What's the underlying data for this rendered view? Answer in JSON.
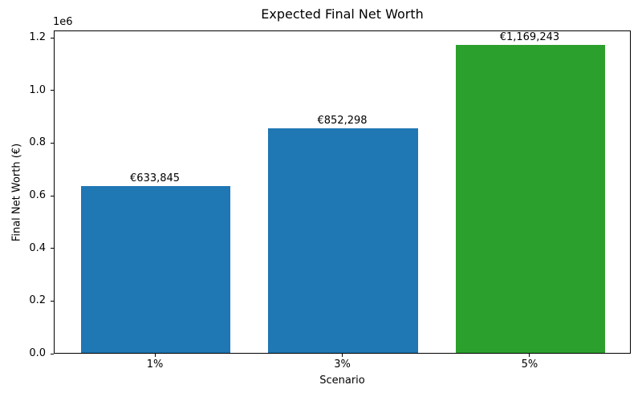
{
  "chart_data": {
    "type": "bar",
    "title": "Expected Final Net Worth",
    "xlabel": "Scenario",
    "ylabel": "Final Net Worth (€)",
    "categories": [
      "1%",
      "3%",
      "5%"
    ],
    "values": [
      633845,
      852298,
      1169243
    ],
    "value_labels": [
      "€633,845",
      "€852,298",
      "€1,169,243"
    ],
    "bar_colors": [
      "#1f77b4",
      "#1f77b4",
      "#2ca02c"
    ],
    "offset_text": "1e6",
    "y_tick_values": [
      0,
      200000,
      400000,
      600000,
      800000,
      1000000,
      1200000
    ],
    "y_tick_labels": [
      "0.0",
      "0.2",
      "0.4",
      "0.6",
      "0.8",
      "1.0",
      "1.2"
    ],
    "ylim": [
      0,
      1227705
    ],
    "grid": false,
    "legend": null,
    "background_color": "#ffffff",
    "spine_color": "#000000"
  }
}
